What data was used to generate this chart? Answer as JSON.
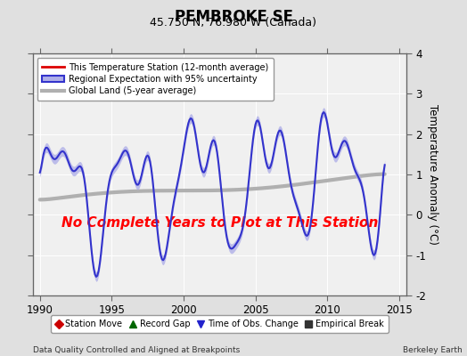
{
  "title": "PEMBROKE SE",
  "subtitle": "45.750 N, 76.980 W (Canada)",
  "ylabel": "Temperature Anomaly (°C)",
  "xlim": [
    1989.5,
    2015.5
  ],
  "ylim": [
    -2,
    4
  ],
  "yticks": [
    -2,
    -1,
    0,
    1,
    2,
    3,
    4
  ],
  "xticks": [
    1990,
    1995,
    2000,
    2005,
    2010,
    2015
  ],
  "footer_left": "Data Quality Controlled and Aligned at Breakpoints",
  "footer_right": "Berkeley Earth",
  "no_data_text": "No Complete Years to Plot at This Station",
  "legend_entries": [
    {
      "label": "This Temperature Station (12-month average)",
      "color": "#dd0000",
      "lw": 1.5
    },
    {
      "label": "Regional Expectation with 95% uncertainty",
      "color": "#3333cc",
      "fill_color": "#b0b0e8",
      "lw": 1.5
    },
    {
      "label": "Global Land (5-year average)",
      "color": "#b0b0b0",
      "lw": 3
    }
  ],
  "legend_markers": [
    {
      "label": "Station Move",
      "marker": "D",
      "color": "#cc0000"
    },
    {
      "label": "Record Gap",
      "marker": "^",
      "color": "#006600"
    },
    {
      "label": "Time of Obs. Change",
      "marker": "v",
      "color": "#2222cc"
    },
    {
      "label": "Empirical Break",
      "marker": "s",
      "color": "#333333"
    }
  ],
  "bg_color": "#e0e0e0",
  "plot_bg_color": "#f0f0f0",
  "grid_color": "#ffffff",
  "title_fontsize": 12,
  "subtitle_fontsize": 9,
  "tick_fontsize": 8.5,
  "label_fontsize": 8.5
}
